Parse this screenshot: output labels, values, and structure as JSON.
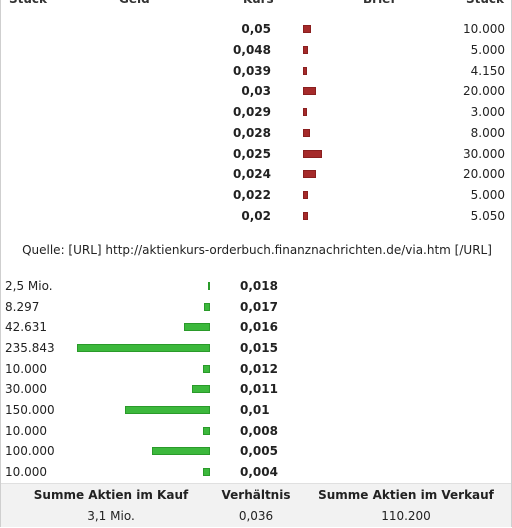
{
  "header": {
    "col1": "Stück",
    "col2": "Geld",
    "col3": "Kurs",
    "col4": "Brief",
    "col5": "Stück"
  },
  "ask": {
    "rows": [
      {
        "kurs": "0,05",
        "qty": "10.000"
      },
      {
        "kurs": "0,048",
        "qty": "5.000"
      },
      {
        "kurs": "0,039",
        "qty": "4.150"
      },
      {
        "kurs": "0,03",
        "qty": "20.000"
      },
      {
        "kurs": "0,029",
        "qty": "3.000"
      },
      {
        "kurs": "0,028",
        "qty": "8.000"
      },
      {
        "kurs": "0,025",
        "qty": "30.000"
      },
      {
        "kurs": "0,024",
        "qty": "20.000"
      },
      {
        "kurs": "0,022",
        "qty": "5.000"
      },
      {
        "kurs": "0,02",
        "qty": "5.050"
      }
    ],
    "bar_color": "#a52a2a"
  },
  "source_text": "Quelle: [URL] http://aktienkurs-orderbuch.finanznachrichten.de/via.htm [/URL]",
  "bid": {
    "rows": [
      {
        "qty": "2,5 Mio.",
        "kurs": "0,018"
      },
      {
        "qty": "8.297",
        "kurs": "0,017"
      },
      {
        "qty": "42.631",
        "kurs": "0,016"
      },
      {
        "qty": "235.843",
        "kurs": "0,015"
      },
      {
        "qty": "10.000",
        "kurs": "0,012"
      },
      {
        "qty": "30.000",
        "kurs": "0,011"
      },
      {
        "qty": "150.000",
        "kurs": "0,01"
      },
      {
        "qty": "10.000",
        "kurs": "0,008"
      },
      {
        "qty": "100.000",
        "kurs": "0,005"
      },
      {
        "qty": "10.000",
        "kurs": "0,004"
      }
    ],
    "bar_color": "#3cb83c"
  },
  "summary": {
    "buy_label": "Summe Aktien im Kauf",
    "ratio_label": "Verhältnis",
    "sell_label": "Summe Aktien im Verkauf",
    "buy_value": "3,1 Mio.",
    "ratio_value": "0,036",
    "sell_value": "110.200"
  }
}
